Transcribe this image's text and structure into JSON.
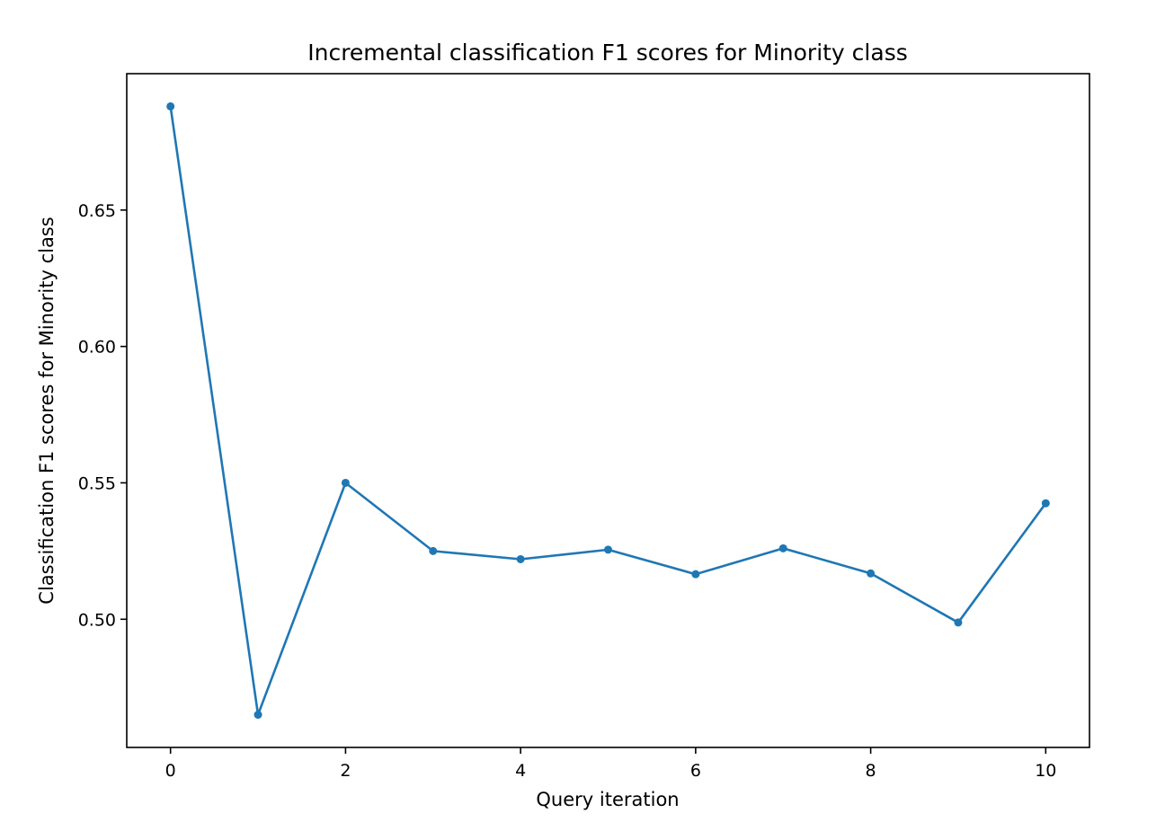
{
  "chart_data": {
    "type": "line",
    "title": "Incremental classification F1 scores for Minority class",
    "xlabel": "Query iteration",
    "ylabel": "Classification F1 scores for Minority class",
    "x": [
      0,
      1,
      2,
      3,
      4,
      5,
      6,
      7,
      8,
      9,
      10
    ],
    "xticks": [
      "0",
      "2",
      "4",
      "6",
      "8",
      "10"
    ],
    "yticks": [
      "0.50",
      "0.55",
      "0.60",
      "0.65"
    ],
    "xlim": [
      -0.5,
      10.5
    ],
    "ylim": [
      0.453,
      0.7
    ],
    "series": [
      {
        "values": [
          0.688,
          0.465,
          0.55,
          0.525,
          0.522,
          0.5255,
          0.5165,
          0.526,
          0.5168,
          0.4988,
          0.5425
        ],
        "color": "#1f77b4",
        "marker": "circle"
      }
    ],
    "grid": false,
    "legend": "none"
  }
}
